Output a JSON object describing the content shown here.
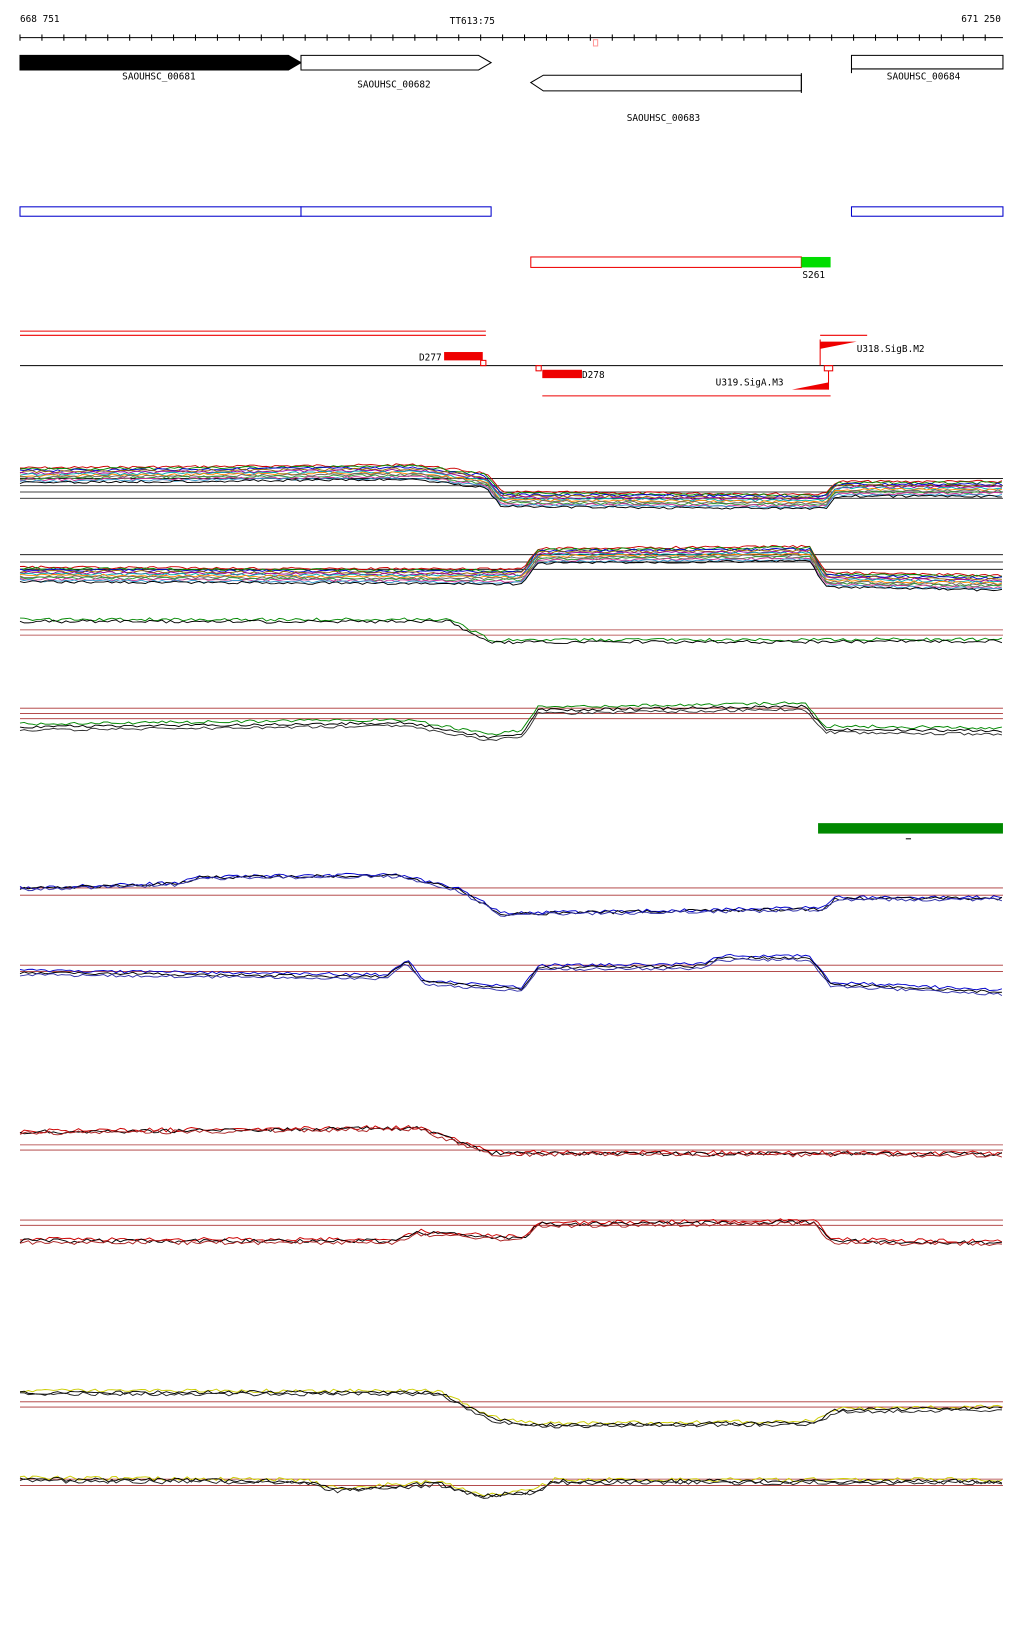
{
  "ruler": {
    "start": "668 751",
    "marker": "TT613:75",
    "end": "671 250"
  },
  "genes": [
    "SAOUHSC_00681",
    "SAOUHSC_00682",
    "SAOUHSC_00683",
    "SAOUHSC_00684"
  ],
  "features": {
    "s261": "S261",
    "d277": "D277",
    "d278": "D278",
    "u318": "U318.SigB.M2",
    "u319": "U319.SigA.M3"
  }
}
